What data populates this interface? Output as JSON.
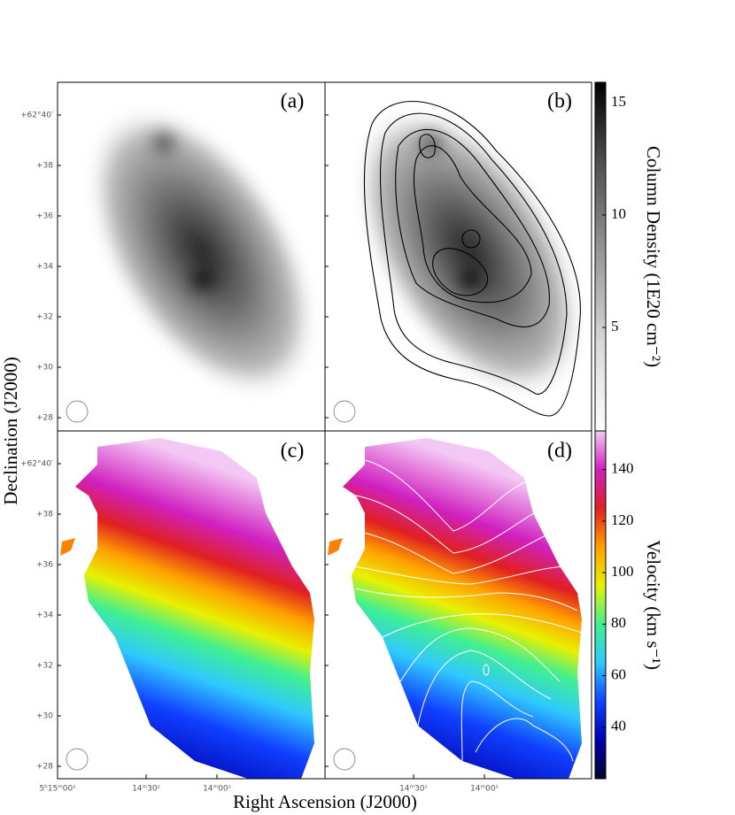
{
  "chart_data": {
    "type": "image",
    "panels": [
      "(a)",
      "(b)",
      "(c)",
      "(d)"
    ],
    "ylabel": "Declination (J2000)",
    "xlabel": "Right Ascension (J2000)",
    "yticks": [
      "+62°40′",
      "+38",
      "+36",
      "+34",
      "+32",
      "+30",
      "+28"
    ],
    "xticks": [
      "5ʰ15ᵐ00ˢ",
      "14ᵐ30ˢ",
      "14ᵐ00ˢ"
    ],
    "colorbars": [
      {
        "label": "Column Density (1E20 cm⁻²)",
        "lim": [
          0.4,
          15.9
        ],
        "ticks": [
          5,
          10,
          15
        ],
        "colormap": [
          "#ffffff",
          "#d8d8d8",
          "#9a9a9a",
          "#555555",
          "#000000"
        ]
      },
      {
        "label": "Velocity (km s⁻¹)",
        "lim": [
          20,
          155
        ],
        "ticks": [
          40,
          60,
          80,
          100,
          120,
          140
        ],
        "colormap": [
          "#05052a",
          "#0000b0",
          "#1040ff",
          "#30c8ff",
          "#40f090",
          "#e8f000",
          "#ffa000",
          "#e02020",
          "#d020c0",
          "#f4c8f4"
        ]
      }
    ]
  }
}
